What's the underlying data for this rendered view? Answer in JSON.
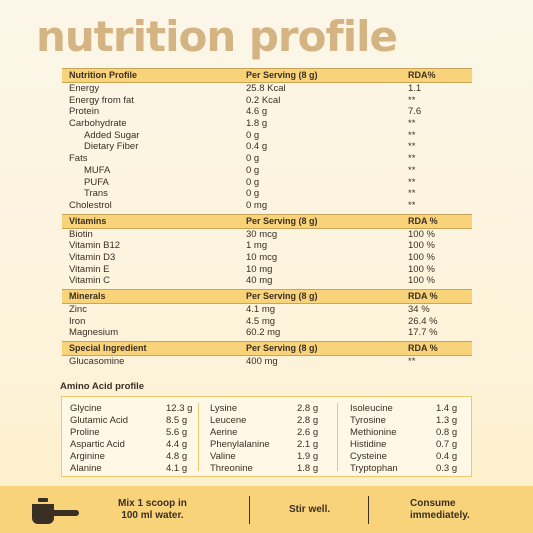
{
  "title": "nutrition profile",
  "sections": [
    {
      "header": [
        "Nutrition Profile",
        "Per Serving (8 g)",
        "RDA%"
      ],
      "rows": [
        {
          "name": "Energy",
          "value": "25.8 Kcal",
          "rda": "1.1",
          "sub": false
        },
        {
          "name": "Energy from fat",
          "value": "0.2 Kcal",
          "rda": "**",
          "sub": false
        },
        {
          "name": "Protein",
          "value": "4.6 g",
          "rda": "7.6",
          "sub": false
        },
        {
          "name": "Carbohydrate",
          "value": "1.8 g",
          "rda": "**",
          "sub": false
        },
        {
          "name": "Added Sugar",
          "value": "0 g",
          "rda": "**",
          "sub": true
        },
        {
          "name": "Dietary Fiber",
          "value": "0.4 g",
          "rda": "**",
          "sub": true
        },
        {
          "name": "Fats",
          "value": "0 g",
          "rda": "**",
          "sub": false
        },
        {
          "name": "MUFA",
          "value": "0 g",
          "rda": "**",
          "sub": true
        },
        {
          "name": "PUFA",
          "value": "0 g",
          "rda": "**",
          "sub": true
        },
        {
          "name": "Trans",
          "value": "0 g",
          "rda": "**",
          "sub": true
        },
        {
          "name": "Cholestrol",
          "value": "0 mg",
          "rda": "**",
          "sub": false
        }
      ]
    },
    {
      "header": [
        "Vitamins",
        "Per Serving (8 g)",
        "RDA %"
      ],
      "rows": [
        {
          "name": "Biotin",
          "value": "30 mcg",
          "rda": "100 %",
          "sub": false
        },
        {
          "name": "Vitamin B12",
          "value": "1 mg",
          "rda": "100 %",
          "sub": false
        },
        {
          "name": "Vitamin D3",
          "value": "10 mcg",
          "rda": "100 %",
          "sub": false
        },
        {
          "name": "Vitamin E",
          "value": "10 mg",
          "rda": "100 %",
          "sub": false
        },
        {
          "name": "Vitamin C",
          "value": "40 mg",
          "rda": "100 %",
          "sub": false
        }
      ]
    },
    {
      "header": [
        "Minerals",
        "Per Serving (8 g)",
        "RDA %"
      ],
      "rows": [
        {
          "name": "Zinc",
          "value": "4.1 mg",
          "rda": "34 %",
          "sub": false
        },
        {
          "name": "Iron",
          "value": "4.5 mg",
          "rda": "26.4 %",
          "sub": false
        },
        {
          "name": "Magnesium",
          "value": "60.2 mg",
          "rda": "17.7 %",
          "sub": false
        }
      ]
    },
    {
      "header": [
        "Special Ingredient",
        "Per Serving (8 g)",
        "RDA %"
      ],
      "rows": [
        {
          "name": "Glucasomine",
          "value": "400 mg",
          "rda": "**",
          "sub": false
        }
      ]
    }
  ],
  "amino": {
    "title": "Amino Acid profile",
    "columns": [
      [
        {
          "name": "Glycine",
          "value": "12.3 g"
        },
        {
          "name": "Glutamic Acid",
          "value": "8.5 g"
        },
        {
          "name": "Proline",
          "value": "5.6 g"
        },
        {
          "name": "Aspartic Acid",
          "value": "4.4 g"
        },
        {
          "name": "Arginine",
          "value": "4.8 g"
        },
        {
          "name": "Alanine",
          "value": "4.1 g"
        }
      ],
      [
        {
          "name": "Lysine",
          "value": "2.8 g"
        },
        {
          "name": "Leucene",
          "value": "2.8 g"
        },
        {
          "name": "Aerine",
          "value": "2.6 g"
        },
        {
          "name": "Phenylalanine",
          "value": "2.1 g"
        },
        {
          "name": "Valine",
          "value": "1.9 g"
        },
        {
          "name": "Threonine",
          "value": "1.8 g"
        }
      ],
      [
        {
          "name": "Isoleucine",
          "value": "1.4 g"
        },
        {
          "name": "Tyrosine",
          "value": "1.3 g"
        },
        {
          "name": "Methionine",
          "value": "0.8 g"
        },
        {
          "name": "Histidine",
          "value": "0.7 g"
        },
        {
          "name": "Cysteine",
          "value": "0.4 g"
        },
        {
          "name": "Tryptophan",
          "value": "0.3 g"
        }
      ]
    ]
  },
  "instructions": {
    "icon": "scoop-icon",
    "step1": [
      "Mix 1 scoop in",
      "100 ml water."
    ],
    "step2": "Stir well.",
    "step3": [
      "Consume",
      "immediately."
    ]
  },
  "colors": {
    "title": "#d5b483",
    "accent": "#f9d37a",
    "text": "#3a2f24"
  }
}
